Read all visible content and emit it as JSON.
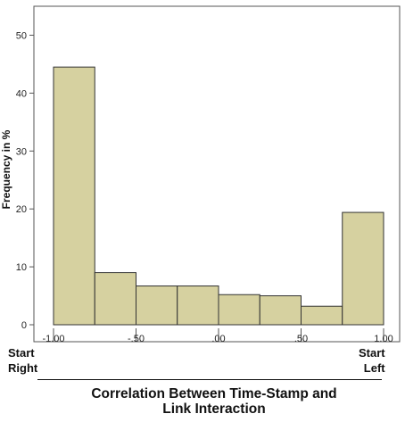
{
  "chart_data": {
    "type": "bar",
    "histogram": true,
    "bin_edges": [
      -1.0,
      -0.75,
      -0.5,
      -0.25,
      0.0,
      0.25,
      0.5,
      0.75,
      1.0
    ],
    "values": [
      44.5,
      9.0,
      6.7,
      6.7,
      5.2,
      5.0,
      3.2,
      19.4
    ],
    "ylim": [
      0,
      55
    ],
    "xlim": [
      -1.0,
      1.0
    ],
    "yticks": [
      0,
      10,
      20,
      30,
      40,
      50
    ],
    "ytick_labels": [
      "0",
      "10",
      "20",
      "30",
      "40",
      "50"
    ],
    "xticks": [
      -1.0,
      -0.5,
      0.0,
      0.5,
      1.0
    ],
    "xtick_labels": [
      "-1.00",
      "-.50",
      ".00",
      ".50",
      "1.00"
    ],
    "ylabel": "Frequency in %",
    "title_line1": "Correlation Between Time-Stamp and",
    "title_line2": "Link Interaction",
    "left_end_label": [
      "Start",
      "Right"
    ],
    "right_end_label": [
      "Start",
      "Left"
    ],
    "grid": false,
    "colors": {
      "bar_fill": "#d6d1a0",
      "bar_stroke": "#333333",
      "frame": "#555555"
    }
  }
}
